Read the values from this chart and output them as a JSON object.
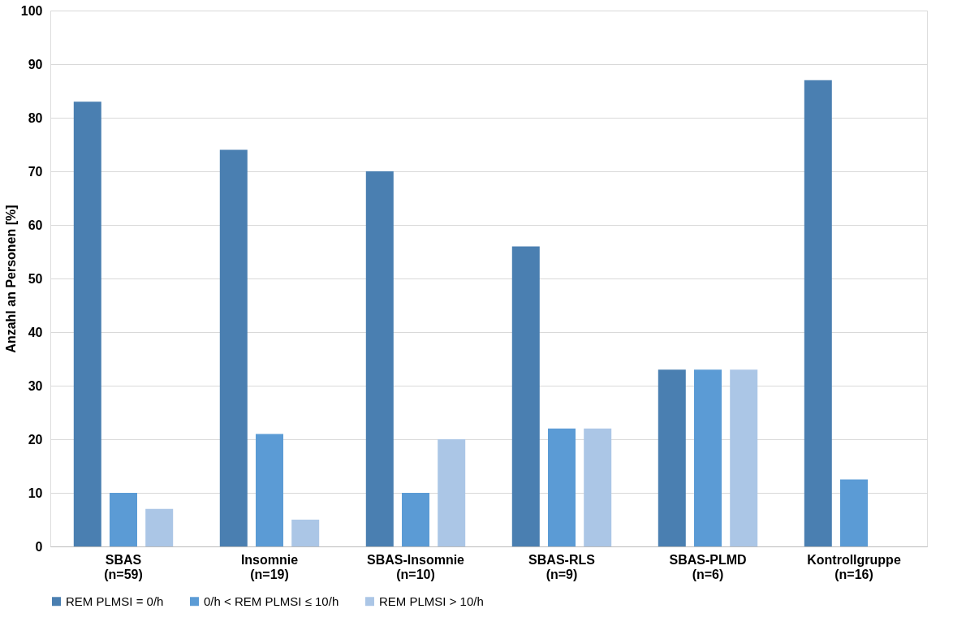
{
  "chart_data": {
    "type": "bar",
    "ylabel": "Anzahl an Personen [%]",
    "categories": [
      "SBAS\n(n=59)",
      "Insomnie\n(n=19)",
      "SBAS-Insomnie\n(n=10)",
      "SBAS-RLS\n(n=9)",
      "SBAS-PLMD\n(n=6)",
      "Kontrollgruppe\n(n=16)"
    ],
    "series": [
      {
        "name": "REM PLMSI = 0/h",
        "color": "#4a7fb1",
        "values": [
          83,
          74,
          70,
          56,
          33,
          87
        ]
      },
      {
        "name": "0/h < REM PLMSI ≤ 10/h",
        "color": "#5b9bd5",
        "values": [
          10,
          21,
          10,
          22,
          33,
          12.5
        ]
      },
      {
        "name": "REM PLMSI > 10/h",
        "color": "#abc6e6",
        "values": [
          7,
          5,
          20,
          22,
          33,
          null
        ]
      }
    ],
    "ylim": [
      0,
      100
    ],
    "yticks": [
      0,
      10,
      20,
      30,
      40,
      50,
      60,
      70,
      80,
      90,
      100
    ],
    "grid": "y",
    "legend": "bottom"
  }
}
